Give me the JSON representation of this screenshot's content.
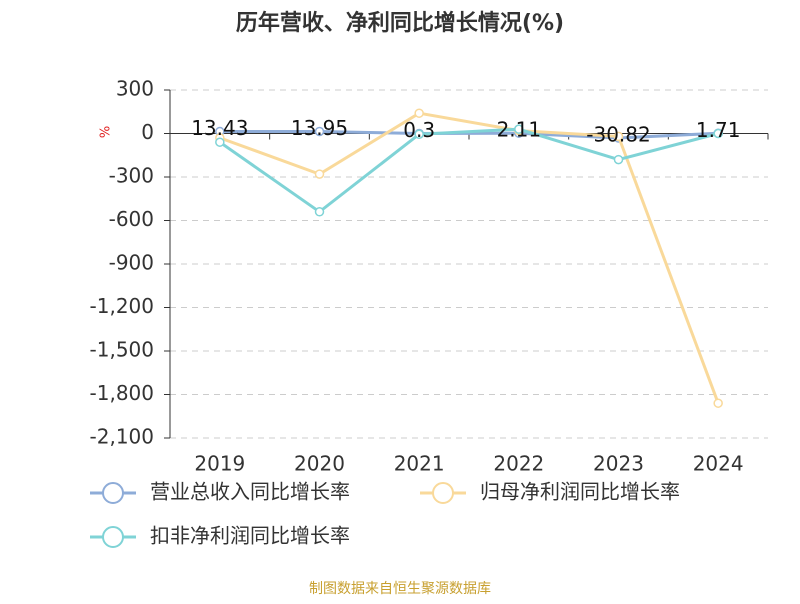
{
  "chart_data": {
    "type": "line",
    "title": "历年营收、净利同比增长情况(%)",
    "y_label": "%",
    "categories": [
      "2019",
      "2020",
      "2021",
      "2022",
      "2023",
      "2024"
    ],
    "series": [
      {
        "name": "营业总收入同比增长率",
        "color": "#8eacd8",
        "data_labels": true,
        "values": [
          13.43,
          13.95,
          0.3,
          2.11,
          -30.82,
          1.71
        ]
      },
      {
        "name": "归母净利润同比增长率",
        "color": "#f9d99a",
        "values": [
          -30,
          -280,
          140,
          20,
          -20,
          -1860
        ]
      },
      {
        "name": "扣非净利润同比增长率",
        "color": "#7fd3d6",
        "values": [
          -60,
          -540,
          -5,
          30,
          -180,
          0
        ]
      }
    ],
    "ylim": [
      -2100,
      300
    ],
    "yticks": [
      300,
      0,
      -300,
      -600,
      -900,
      {
        "value": -1200,
        "label": "-1,200"
      },
      {
        "value": -1500,
        "label": "-1,500"
      },
      {
        "value": -1800,
        "label": "-1,800"
      },
      {
        "value": -2100,
        "label": "-2,100"
      }
    ],
    "grid": true,
    "source": "制图数据来自恒生聚源数据库"
  }
}
